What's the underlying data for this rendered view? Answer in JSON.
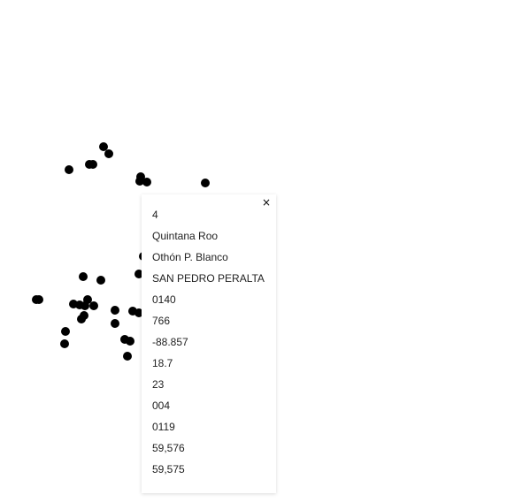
{
  "map": {
    "background": "#ffffff",
    "marker_color": "#000000",
    "marker_count": 34
  },
  "popup": {
    "close_glyph": "×",
    "rows": [
      "4",
      "Quintana Roo",
      "Othón P. Blanco",
      "SAN PEDRO PERALTA",
      "0140",
      "766",
      "-88.857",
      "18.7",
      "23",
      "004",
      "0119",
      "59,576",
      "59,575"
    ]
  }
}
